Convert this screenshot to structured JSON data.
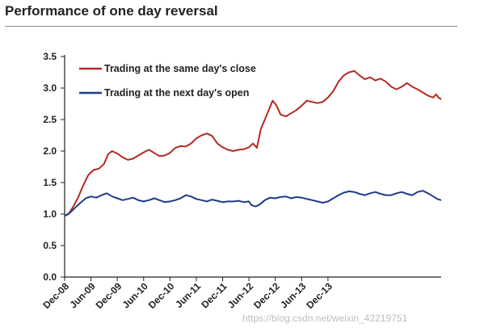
{
  "title": "Performance of one day reversal",
  "watermark": "https://blog.csdn.net/weixin_42219751",
  "chart_data": {
    "type": "line",
    "title": "Performance of one day reversal",
    "xlabel": "",
    "ylabel": "",
    "ylim": [
      0,
      3.5
    ],
    "y_ticks": [
      "0.0",
      "0.5",
      "1.0",
      "1.5",
      "2.0",
      "2.5",
      "3.0",
      "3.5"
    ],
    "x_ticks": [
      "Dec-08",
      "Jun-09",
      "Dec-09",
      "Jun-10",
      "Dec-10",
      "Jun-11",
      "Dec-11",
      "Jun-12",
      "Dec-12",
      "Jun-13",
      "Dec-13"
    ],
    "x_range": [
      "Dec-08",
      "Apr-14"
    ],
    "grid": false,
    "legend_position": "top-left",
    "series": [
      {
        "name": "Trading at the same day's close",
        "color": "#b52a23",
        "points": [
          [
            0,
            0.97
          ],
          [
            0.15,
            1.0
          ],
          [
            0.3,
            1.1
          ],
          [
            0.5,
            1.25
          ],
          [
            0.7,
            1.45
          ],
          [
            0.9,
            1.62
          ],
          [
            1.1,
            1.7
          ],
          [
            1.3,
            1.72
          ],
          [
            1.5,
            1.8
          ],
          [
            1.65,
            1.95
          ],
          [
            1.8,
            2.0
          ],
          [
            2.0,
            1.96
          ],
          [
            2.2,
            1.9
          ],
          [
            2.4,
            1.86
          ],
          [
            2.6,
            1.88
          ],
          [
            2.8,
            1.93
          ],
          [
            3.0,
            1.98
          ],
          [
            3.2,
            2.02
          ],
          [
            3.4,
            1.97
          ],
          [
            3.6,
            1.92
          ],
          [
            3.8,
            1.93
          ],
          [
            4.0,
            1.97
          ],
          [
            4.2,
            2.05
          ],
          [
            4.4,
            2.08
          ],
          [
            4.6,
            2.07
          ],
          [
            4.8,
            2.12
          ],
          [
            5.0,
            2.2
          ],
          [
            5.2,
            2.25
          ],
          [
            5.4,
            2.28
          ],
          [
            5.6,
            2.24
          ],
          [
            5.8,
            2.12
          ],
          [
            6.0,
            2.06
          ],
          [
            6.2,
            2.02
          ],
          [
            6.4,
            2.0
          ],
          [
            6.6,
            2.02
          ],
          [
            6.8,
            2.03
          ],
          [
            7.0,
            2.06
          ],
          [
            7.15,
            2.12
          ],
          [
            7.3,
            2.05
          ],
          [
            7.45,
            2.35
          ],
          [
            7.6,
            2.5
          ],
          [
            7.75,
            2.65
          ],
          [
            7.9,
            2.8
          ],
          [
            8.05,
            2.72
          ],
          [
            8.2,
            2.58
          ],
          [
            8.4,
            2.55
          ],
          [
            8.6,
            2.6
          ],
          [
            8.8,
            2.65
          ],
          [
            9.0,
            2.72
          ],
          [
            9.2,
            2.8
          ],
          [
            9.4,
            2.78
          ],
          [
            9.6,
            2.76
          ],
          [
            9.8,
            2.78
          ],
          [
            10.0,
            2.85
          ],
          [
            10.2,
            2.95
          ],
          [
            10.4,
            3.1
          ],
          [
            10.6,
            3.2
          ],
          [
            10.8,
            3.25
          ],
          [
            11.0,
            3.27
          ],
          [
            11.2,
            3.2
          ],
          [
            11.4,
            3.14
          ],
          [
            11.6,
            3.17
          ],
          [
            11.8,
            3.12
          ],
          [
            12.0,
            3.15
          ],
          [
            12.2,
            3.1
          ],
          [
            12.4,
            3.02
          ],
          [
            12.6,
            2.98
          ],
          [
            12.8,
            3.02
          ],
          [
            13.0,
            3.08
          ],
          [
            13.2,
            3.02
          ],
          [
            13.4,
            2.98
          ],
          [
            13.6,
            2.93
          ],
          [
            13.8,
            2.88
          ],
          [
            14.0,
            2.85
          ],
          [
            14.1,
            2.9
          ],
          [
            14.2,
            2.85
          ],
          [
            14.3,
            2.82
          ]
        ]
      },
      {
        "name": "Trading at the next day's open",
        "color": "#1f3b8c",
        "points": [
          [
            0,
            0.97
          ],
          [
            0.2,
            1.02
          ],
          [
            0.4,
            1.1
          ],
          [
            0.6,
            1.18
          ],
          [
            0.8,
            1.25
          ],
          [
            1.0,
            1.28
          ],
          [
            1.2,
            1.26
          ],
          [
            1.4,
            1.3
          ],
          [
            1.6,
            1.33
          ],
          [
            1.8,
            1.28
          ],
          [
            2.0,
            1.25
          ],
          [
            2.2,
            1.22
          ],
          [
            2.4,
            1.24
          ],
          [
            2.6,
            1.26
          ],
          [
            2.8,
            1.22
          ],
          [
            3.0,
            1.2
          ],
          [
            3.2,
            1.22
          ],
          [
            3.4,
            1.25
          ],
          [
            3.6,
            1.22
          ],
          [
            3.8,
            1.19
          ],
          [
            4.0,
            1.2
          ],
          [
            4.2,
            1.22
          ],
          [
            4.4,
            1.25
          ],
          [
            4.6,
            1.3
          ],
          [
            4.8,
            1.28
          ],
          [
            5.0,
            1.24
          ],
          [
            5.2,
            1.22
          ],
          [
            5.4,
            1.2
          ],
          [
            5.6,
            1.23
          ],
          [
            5.8,
            1.21
          ],
          [
            6.0,
            1.19
          ],
          [
            6.2,
            1.2
          ],
          [
            6.4,
            1.2
          ],
          [
            6.6,
            1.21
          ],
          [
            6.8,
            1.19
          ],
          [
            7.0,
            1.2
          ],
          [
            7.1,
            1.14
          ],
          [
            7.25,
            1.12
          ],
          [
            7.4,
            1.15
          ],
          [
            7.6,
            1.22
          ],
          [
            7.8,
            1.26
          ],
          [
            8.0,
            1.25
          ],
          [
            8.2,
            1.27
          ],
          [
            8.4,
            1.28
          ],
          [
            8.6,
            1.25
          ],
          [
            8.8,
            1.27
          ],
          [
            9.0,
            1.26
          ],
          [
            9.2,
            1.24
          ],
          [
            9.4,
            1.22
          ],
          [
            9.6,
            1.2
          ],
          [
            9.8,
            1.18
          ],
          [
            10.0,
            1.2
          ],
          [
            10.2,
            1.25
          ],
          [
            10.4,
            1.3
          ],
          [
            10.6,
            1.34
          ],
          [
            10.8,
            1.36
          ],
          [
            11.0,
            1.35
          ],
          [
            11.2,
            1.32
          ],
          [
            11.4,
            1.3
          ],
          [
            11.6,
            1.33
          ],
          [
            11.8,
            1.35
          ],
          [
            12.0,
            1.32
          ],
          [
            12.2,
            1.3
          ],
          [
            12.4,
            1.3
          ],
          [
            12.6,
            1.33
          ],
          [
            12.8,
            1.35
          ],
          [
            13.0,
            1.32
          ],
          [
            13.2,
            1.3
          ],
          [
            13.4,
            1.35
          ],
          [
            13.6,
            1.37
          ],
          [
            13.8,
            1.33
          ],
          [
            14.0,
            1.28
          ],
          [
            14.15,
            1.24
          ],
          [
            14.3,
            1.22
          ]
        ]
      }
    ]
  }
}
